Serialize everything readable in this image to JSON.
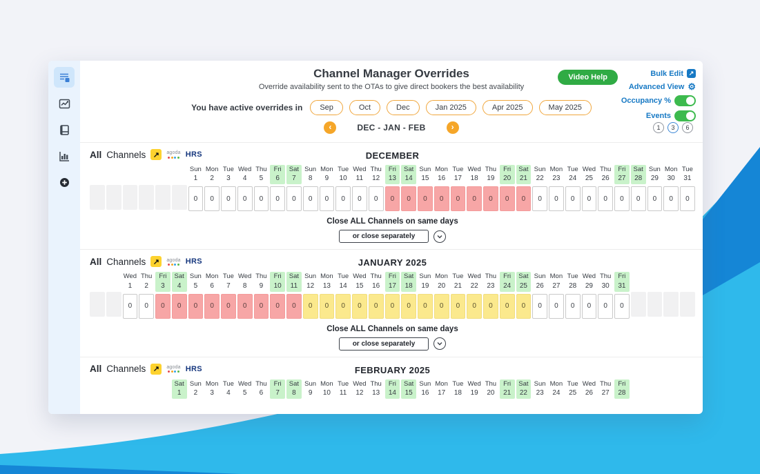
{
  "header": {
    "title": "Channel Manager Overrides",
    "subtitle": "Override availability sent to the OTAs to give direct bookers the best availability",
    "video_help_label": "Video Help",
    "bulk_edit_label": "Bulk Edit",
    "advanced_view_label": "Advanced View",
    "occupancy_label": "Occupancy %",
    "events_label": "Events"
  },
  "icons": {
    "bulk_edit_glyph": "↗",
    "gear_glyph": "⚙",
    "channel_arrow_glyph": "↗"
  },
  "overrides_bar": {
    "label": "You have active overrides in",
    "months": [
      "Sep",
      "Oct",
      "Dec",
      "Jan 2025",
      "Apr 2025",
      "May 2025"
    ]
  },
  "nav": {
    "range_label": "DEC - JAN - FEB",
    "prev": "‹",
    "next": "›",
    "page_options": [
      {
        "label": "1",
        "active": false
      },
      {
        "label": "3",
        "active": true
      },
      {
        "label": "6",
        "active": false
      }
    ]
  },
  "channels_row": {
    "all": "All",
    "channels": "Channels",
    "agoda_label": "agoda",
    "hrs_label": "HRS"
  },
  "calendar": {
    "dow_cycle": [
      "Mon",
      "Tue",
      "Wed",
      "Thu",
      "Fri",
      "Sat",
      "Sun"
    ],
    "weekend_days": [
      "Fri",
      "Sat"
    ],
    "total_columns": 37,
    "cell_value": "0",
    "close_all_label": "Close ALL Channels on same days",
    "close_separately_label": "or close separately",
    "months": [
      {
        "title": "DECEMBER",
        "lead_blanks": 6,
        "num_days": 31,
        "show_values": true,
        "show_footer": true,
        "states": [
          {
            "from": 1,
            "to": 12,
            "state": "open"
          },
          {
            "from": 13,
            "to": 21,
            "state": "closed"
          },
          {
            "from": 22,
            "to": 31,
            "state": "open"
          }
        ]
      },
      {
        "title": "JANUARY 2025",
        "lead_blanks": 2,
        "num_days": 31,
        "show_values": true,
        "show_footer": true,
        "states": [
          {
            "from": 1,
            "to": 2,
            "state": "open"
          },
          {
            "from": 3,
            "to": 11,
            "state": "closed"
          },
          {
            "from": 12,
            "to": 25,
            "state": "partial"
          },
          {
            "from": 26,
            "to": 31,
            "state": "open"
          }
        ]
      },
      {
        "title": "FEBRUARY 2025",
        "lead_blanks": 5,
        "num_days": 28,
        "show_values": false,
        "show_footer": false,
        "states": []
      }
    ]
  },
  "colors": {
    "accent_orange": "#f5a629",
    "link_blue": "#1779c4",
    "video_help_green": "#30ab44",
    "toggle_green": "#3dba4e",
    "weekend_header_bg": "#c9f2ca",
    "closed_cell_red": "#f7a6a6",
    "partial_cell_yellow": "#fbe98d",
    "blank_cell_gray": "#f1f1f2",
    "wave_cyan": "#2fb9eb",
    "wave_blue": "#1586d6"
  }
}
